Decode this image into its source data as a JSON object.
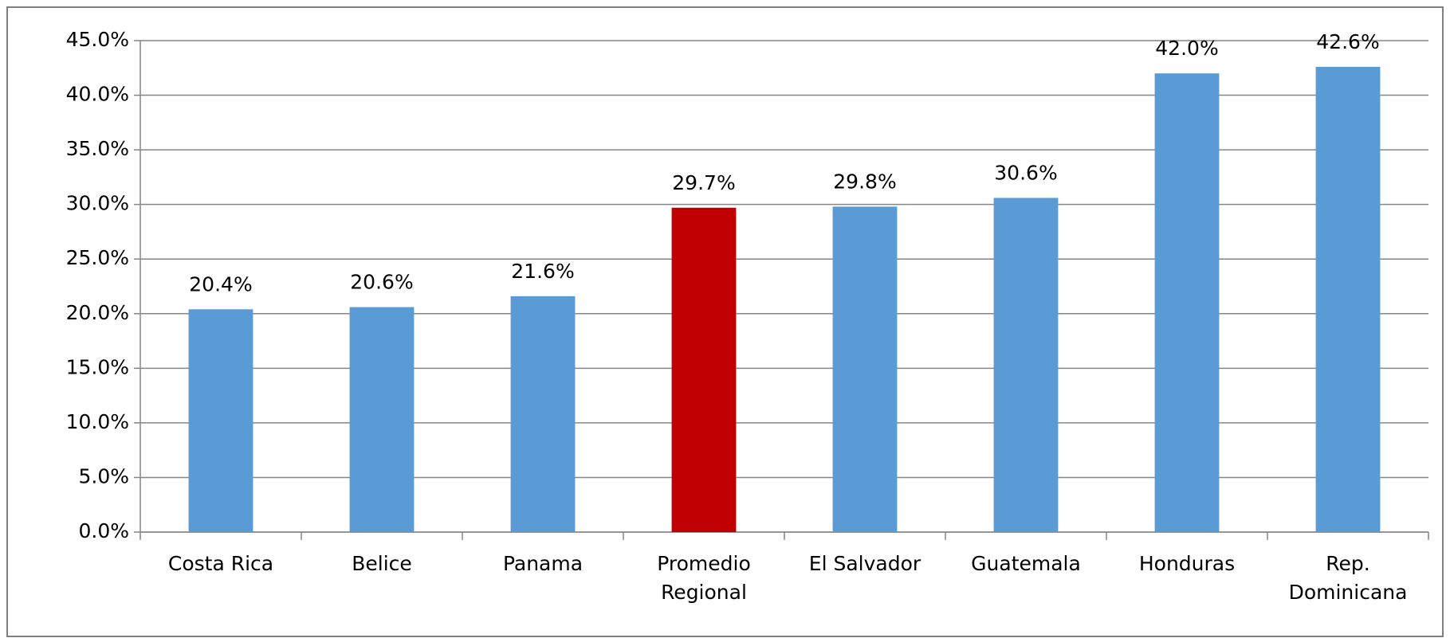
{
  "chart_data": {
    "type": "bar",
    "categories": [
      "Costa Rica",
      "Belice",
      "Panama",
      "Promedio Regional",
      "El Salvador",
      "Guatemala",
      "Honduras",
      "Rep. Dominicana"
    ],
    "values": [
      20.4,
      20.6,
      21.6,
      29.7,
      29.8,
      30.6,
      42.0,
      42.6
    ],
    "value_labels": [
      "20.4%",
      "20.6%",
      "21.6%",
      "29.7%",
      "29.8%",
      "30.6%",
      "42.0%",
      "42.6%"
    ],
    "colors": [
      "#5b9bd5",
      "#5b9bd5",
      "#5b9bd5",
      "#c00000",
      "#5b9bd5",
      "#5b9bd5",
      "#5b9bd5",
      "#5b9bd5"
    ],
    "ylim": [
      0,
      45
    ],
    "yticks": [
      {
        "value": 0,
        "label": "0.0%"
      },
      {
        "value": 5,
        "label": "5.0%"
      },
      {
        "value": 10,
        "label": "10.0%"
      },
      {
        "value": 15,
        "label": "15.0%"
      },
      {
        "value": 20,
        "label": "20.0%"
      },
      {
        "value": 25,
        "label": "25.0%"
      },
      {
        "value": 30,
        "label": "30.0%"
      },
      {
        "value": 35,
        "label": "35.0%"
      },
      {
        "value": 40,
        "label": "40.0%"
      },
      {
        "value": 45,
        "label": "45.0%"
      }
    ],
    "grid": true
  }
}
